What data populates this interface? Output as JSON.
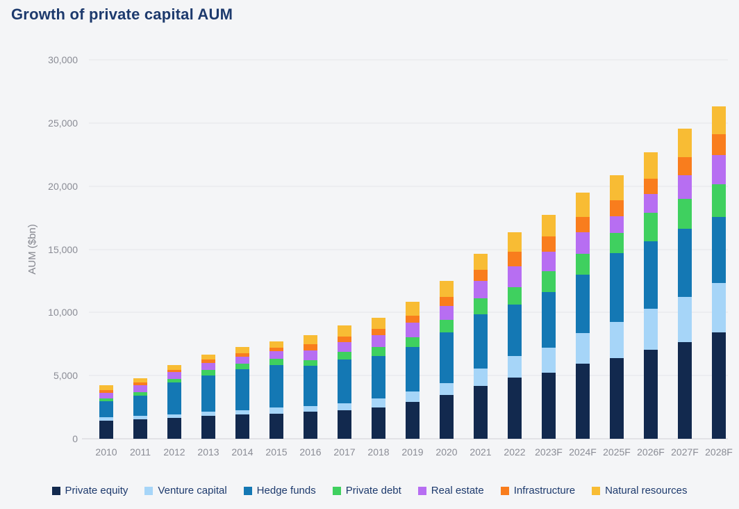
{
  "page": {
    "background": "#f4f5f7"
  },
  "header": {
    "title": "Growth of private capital AUM"
  },
  "chart_data": {
    "type": "bar",
    "stacked": true,
    "title": "Growth of private capital AUM",
    "xlabel": "",
    "ylabel": "AUM ($bn)",
    "ylim": [
      0,
      30000
    ],
    "ytick_step": 5000,
    "ytick_labels": [
      "0",
      "5,000",
      "10,000",
      "15,000",
      "20,000",
      "25,000",
      "30,000"
    ],
    "grid": true,
    "legend_position": "bottom",
    "categories": [
      "2010",
      "2011",
      "2012",
      "2013",
      "2014",
      "2015",
      "2016",
      "2017",
      "2018",
      "2019",
      "2020",
      "2021",
      "2022",
      "2023F",
      "2024F",
      "2025F",
      "2026F",
      "2027F",
      "2028F"
    ],
    "series": [
      {
        "name": "Private equity",
        "color": "#12294e",
        "values": [
          1450,
          1550,
          1650,
          1800,
          1950,
          2000,
          2150,
          2250,
          2500,
          2900,
          3480,
          4180,
          4870,
          5220,
          5950,
          6370,
          7050,
          7650,
          8450
        ]
      },
      {
        "name": "Venture capital",
        "color": "#a6d5f8",
        "values": [
          270,
          280,
          300,
          330,
          330,
          460,
          450,
          550,
          680,
          820,
          930,
          1370,
          1680,
          1980,
          2440,
          2870,
          3260,
          3570,
          3880
        ]
      },
      {
        "name": "Hedge funds",
        "color": "#1478b4",
        "values": [
          1280,
          1590,
          2500,
          2900,
          3200,
          3370,
          3200,
          3480,
          3350,
          3570,
          4000,
          4300,
          4070,
          4430,
          4580,
          5450,
          5310,
          5410,
          5220
        ]
      },
      {
        "name": "Private debt",
        "color": "#3fd05f",
        "values": [
          190,
          260,
          260,
          420,
          460,
          510,
          420,
          590,
          730,
          730,
          1030,
          1290,
          1370,
          1650,
          1650,
          1610,
          2290,
          2340,
          2600
        ]
      },
      {
        "name": "Real estate",
        "color": "#b76ef2",
        "values": [
          470,
          550,
          550,
          550,
          580,
          600,
          790,
          790,
          950,
          1190,
          1100,
          1370,
          1650,
          1520,
          1740,
          1320,
          1470,
          1870,
          2310
        ]
      },
      {
        "name": "Infrastructure",
        "color": "#f97d1d",
        "values": [
          220,
          220,
          220,
          280,
          280,
          280,
          460,
          460,
          490,
          550,
          690,
          880,
          1190,
          1230,
          1190,
          1280,
          1230,
          1470,
          1650
        ]
      },
      {
        "name": "Natural resources",
        "color": "#f8bc34",
        "values": [
          350,
          330,
          370,
          410,
          460,
          480,
          730,
          880,
          880,
          1100,
          1250,
          1260,
          1520,
          1700,
          1960,
          1960,
          2070,
          2240,
          2230
        ]
      }
    ],
    "colors": {
      "title_text": "#1d3a6d",
      "axis_text": "#8a8c95",
      "gridline": "#e5e5e9",
      "baseline": "#cfd0d6",
      "background": "#f4f5f7"
    }
  }
}
